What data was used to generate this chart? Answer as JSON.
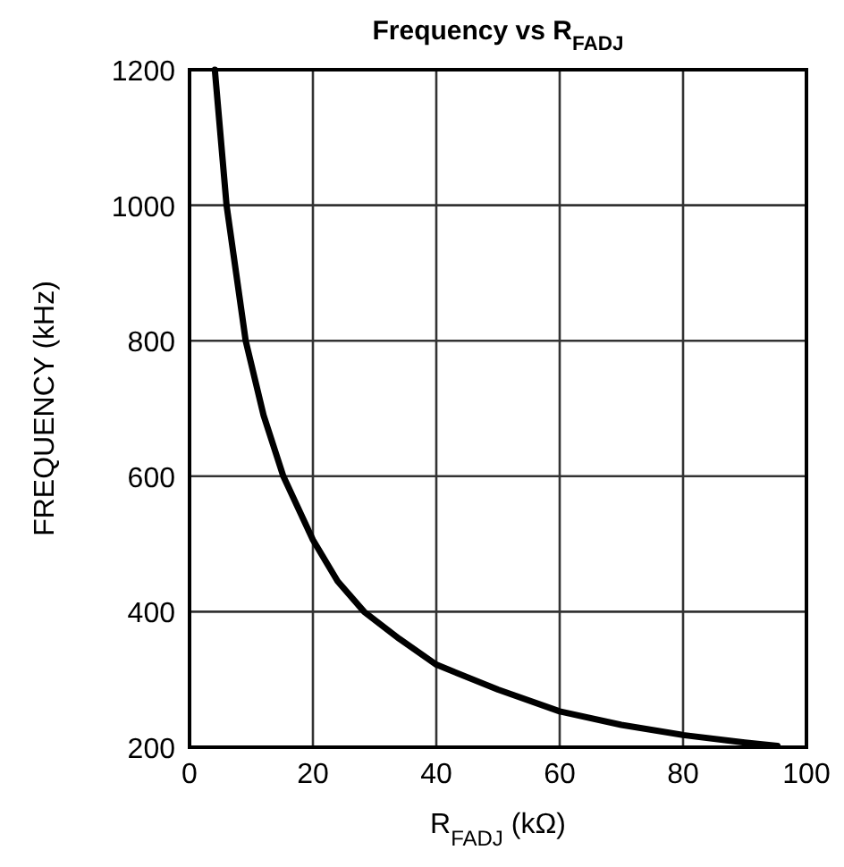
{
  "chart_data": {
    "type": "line",
    "title": "Frequency vs R$_{FADJ}$",
    "xlabel": "R$_{FADJ}$ (kΩ)",
    "ylabel": "FREQUENCY (kHz)",
    "xlim": [
      0,
      100
    ],
    "xticks": [
      0,
      20,
      40,
      60,
      80,
      100
    ],
    "ylim": [
      200,
      1200
    ],
    "yticks": [
      200,
      400,
      600,
      800,
      1000,
      1200
    ],
    "grid": true,
    "line_style": "solid",
    "marker": "none",
    "series": [
      {
        "color": "#000000",
        "x": [
          4.1,
          6,
          9.1,
          12,
          15.2,
          20,
          24,
          28.3,
          34,
          40,
          50,
          60,
          70,
          80,
          90,
          95.3
        ],
        "values": [
          1200,
          1000,
          800,
          690,
          600,
          506,
          445,
          400,
          360,
          322,
          285,
          253,
          233,
          218,
          207,
          202
        ]
      }
    ]
  }
}
